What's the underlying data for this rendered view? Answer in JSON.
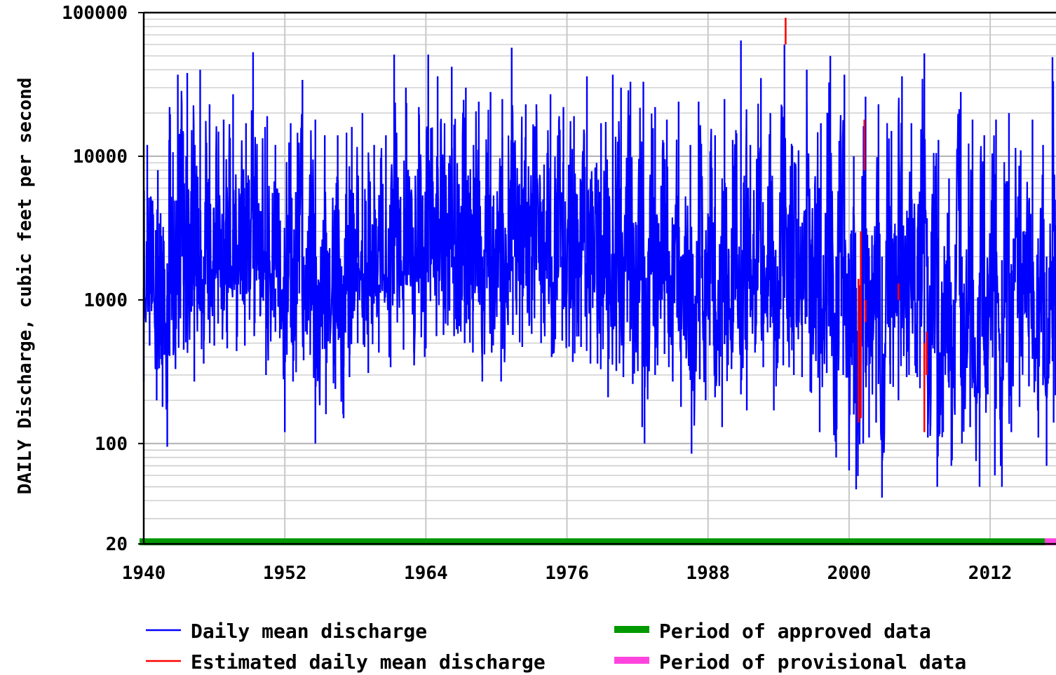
{
  "chart_data": {
    "type": "line",
    "title": "",
    "ylabel": "DAILY Discharge, cubic feet per second",
    "xlabel": "",
    "y_scale": "log",
    "ylim": [
      20,
      100000
    ],
    "xlim": [
      1940.0,
      2017.6
    ],
    "y_ticks": [
      "100000",
      "10000",
      "1000",
      "100",
      "20"
    ],
    "x_ticks": [
      "1940",
      "1952",
      "1964",
      "1976",
      "1988",
      "2000",
      "2012"
    ],
    "grid": true,
    "legend_position": "bottom",
    "legend": [
      {
        "label": "Daily mean discharge",
        "kind": "line",
        "color": "#0000ff"
      },
      {
        "label": "Estimated daily mean discharge",
        "kind": "line",
        "color": "#ff0000"
      },
      {
        "label": "Period of approved data",
        "kind": "bar",
        "color": "#009900"
      },
      {
        "label": "Period of provisional data",
        "kind": "bar",
        "color": "#ff44dd"
      }
    ],
    "series": [
      {
        "name": "Daily mean discharge",
        "color": "#0000ff",
        "annual_peaks": [
          [
            1940.3,
            12000
          ],
          [
            1941.2,
            8000
          ],
          [
            1942.2,
            22000
          ],
          [
            1942.9,
            37000
          ],
          [
            1943.7,
            38000
          ],
          [
            1944.8,
            40000
          ],
          [
            1945.6,
            23000
          ],
          [
            1946.8,
            18000
          ],
          [
            1947.6,
            27000
          ],
          [
            1948.7,
            17000
          ],
          [
            1949.3,
            53000
          ],
          [
            1950.5,
            19000
          ],
          [
            1951.2,
            12000
          ],
          [
            1952.5,
            17000
          ],
          [
            1953.5,
            34000
          ],
          [
            1954.6,
            18000
          ],
          [
            1955.4,
            14000
          ],
          [
            1956.5,
            14000
          ],
          [
            1957.7,
            16000
          ],
          [
            1958.6,
            20000
          ],
          [
            1959.6,
            12000
          ],
          [
            1960.6,
            14000
          ],
          [
            1961.3,
            51000
          ],
          [
            1962.3,
            30000
          ],
          [
            1963.4,
            22000
          ],
          [
            1964.2,
            51000
          ],
          [
            1965.0,
            36000
          ],
          [
            1966.2,
            42000
          ],
          [
            1967.4,
            30000
          ],
          [
            1968.5,
            24000
          ],
          [
            1969.5,
            28000
          ],
          [
            1970.5,
            25000
          ],
          [
            1971.3,
            57000
          ],
          [
            1972.5,
            23000
          ],
          [
            1973.4,
            23000
          ],
          [
            1974.6,
            27000
          ],
          [
            1975.7,
            22000
          ],
          [
            1976.6,
            19000
          ],
          [
            1977.7,
            36000
          ],
          [
            1978.9,
            17000
          ],
          [
            1979.9,
            37000
          ],
          [
            1980.6,
            30000
          ],
          [
            1981.4,
            33000
          ],
          [
            1982.5,
            33000
          ],
          [
            1983.5,
            22000
          ],
          [
            1984.5,
            18000
          ],
          [
            1985.5,
            24000
          ],
          [
            1986.5,
            12000
          ],
          [
            1987.2,
            24000
          ],
          [
            1988.6,
            14000
          ],
          [
            1989.4,
            25000
          ],
          [
            1990.1,
            13000
          ],
          [
            1990.8,
            64000
          ],
          [
            1991.6,
            12000
          ],
          [
            1992.5,
            35000
          ],
          [
            1993.3,
            20000
          ],
          [
            1994.5,
            60000
          ],
          [
            1995.7,
            11000
          ],
          [
            1996.4,
            40000
          ],
          [
            1997.6,
            17000
          ],
          [
            1998.4,
            50000
          ],
          [
            1999.6,
            37000
          ],
          [
            2000.4,
            10000
          ],
          [
            2001.4,
            26000
          ],
          [
            2002.5,
            23000
          ],
          [
            2003.6,
            15000
          ],
          [
            2004.5,
            36000
          ],
          [
            2005.3,
            17000
          ],
          [
            2006.4,
            52000
          ],
          [
            2007.6,
            13000
          ],
          [
            2008.5,
            7000
          ],
          [
            2009.5,
            28000
          ],
          [
            2010.5,
            18000
          ],
          [
            2011.5,
            14000
          ],
          [
            2012.5,
            18000
          ],
          [
            2013.6,
            20000
          ],
          [
            2014.6,
            11000
          ],
          [
            2015.6,
            18000
          ],
          [
            2016.5,
            12000
          ],
          [
            2017.3,
            49000
          ]
        ],
        "annual_minima": [
          [
            1940.0,
            270
          ],
          [
            1940.5,
            480
          ],
          [
            1941.1,
            200
          ],
          [
            1941.6,
            180
          ],
          [
            1942.0,
            95
          ],
          [
            1942.7,
            330
          ],
          [
            1943.4,
            450
          ],
          [
            1944.3,
            270
          ],
          [
            1945.1,
            360
          ],
          [
            1946.0,
            480
          ],
          [
            1947.1,
            460
          ],
          [
            1947.9,
            440
          ],
          [
            1948.6,
            480
          ],
          [
            1949.4,
            560
          ],
          [
            1950.4,
            300
          ],
          [
            1951.2,
            600
          ],
          [
            1951.9,
            280
          ],
          [
            1952.0,
            120
          ],
          [
            1952.7,
            270
          ],
          [
            1953.6,
            380
          ],
          [
            1954.6,
            100
          ],
          [
            1955.5,
            160
          ],
          [
            1956.3,
            240
          ],
          [
            1957.0,
            150
          ],
          [
            1957.5,
            290
          ],
          [
            1958.2,
            500
          ],
          [
            1959.1,
            310
          ],
          [
            1960.0,
            430
          ],
          [
            1961.0,
            340
          ],
          [
            1962.1,
            450
          ],
          [
            1963.0,
            350
          ],
          [
            1963.9,
            400
          ],
          [
            1964.9,
            560
          ],
          [
            1965.5,
            570
          ],
          [
            1966.4,
            560
          ],
          [
            1967.3,
            500
          ],
          [
            1968.0,
            430
          ],
          [
            1968.8,
            270
          ],
          [
            1969.6,
            430
          ],
          [
            1970.4,
            270
          ],
          [
            1971.4,
            570
          ],
          [
            1972.2,
            470
          ],
          [
            1973.0,
            580
          ],
          [
            1973.8,
            500
          ],
          [
            1974.7,
            400
          ],
          [
            1975.6,
            520
          ],
          [
            1976.5,
            370
          ],
          [
            1977.2,
            470
          ],
          [
            1978.0,
            360
          ],
          [
            1978.6,
            360
          ],
          [
            1979.5,
            210
          ],
          [
            1980.2,
            320
          ],
          [
            1980.8,
            290
          ],
          [
            1981.6,
            260
          ],
          [
            1982.4,
            130
          ],
          [
            1982.6,
            100
          ],
          [
            1983.5,
            300
          ],
          [
            1984.3,
            420
          ],
          [
            1985.0,
            270
          ],
          [
            1985.7,
            180
          ],
          [
            1986.6,
            85
          ],
          [
            1987.3,
            280
          ],
          [
            1987.8,
            200
          ],
          [
            1988.6,
            210
          ],
          [
            1989.2,
            130
          ],
          [
            1990.0,
            330
          ],
          [
            1990.8,
            220
          ],
          [
            1991.3,
            170
          ],
          [
            1992.0,
            430
          ],
          [
            1992.7,
            340
          ],
          [
            1993.6,
            170
          ],
          [
            1994.4,
            350
          ],
          [
            1995.3,
            300
          ],
          [
            1996.0,
            290
          ],
          [
            1996.7,
            230
          ],
          [
            1997.5,
            120
          ],
          [
            1998.1,
            310
          ],
          [
            1998.9,
            80
          ],
          [
            1999.5,
            300
          ],
          [
            2000.0,
            65
          ],
          [
            2000.6,
            48
          ],
          [
            2001.2,
            100
          ],
          [
            2001.7,
            110
          ],
          [
            2002.3,
            140
          ],
          [
            2002.8,
            42
          ],
          [
            2003.5,
            260
          ],
          [
            2004.2,
            200
          ],
          [
            2004.9,
            290
          ],
          [
            2005.8,
            290
          ],
          [
            2006.7,
            110
          ],
          [
            2007.5,
            50
          ],
          [
            2008.0,
            120
          ],
          [
            2008.7,
            70
          ],
          [
            2009.6,
            100
          ],
          [
            2010.3,
            130
          ],
          [
            2011.1,
            50
          ],
          [
            2011.8,
            220
          ],
          [
            2012.4,
            60
          ],
          [
            2013.0,
            50
          ],
          [
            2013.8,
            120
          ],
          [
            2014.5,
            180
          ],
          [
            2015.3,
            250
          ],
          [
            2016.1,
            110
          ],
          [
            2016.8,
            70
          ],
          [
            2017.4,
            140
          ]
        ]
      },
      {
        "name": "Estimated daily mean discharge",
        "color": "#ff0000",
        "segments": [
          {
            "x": 1994.6,
            "y_range": [
              60000,
              92000
            ]
          },
          {
            "x": 2000.8,
            "y_range": [
              140,
              1400
            ]
          },
          {
            "x": 2001.0,
            "y_range": [
              150,
              3000
            ]
          },
          {
            "x": 2001.3,
            "y_range": [
              8000,
              18000
            ]
          },
          {
            "x": 2001.4,
            "y_range": [
              700,
              1000
            ]
          },
          {
            "x": 2004.2,
            "y_range": [
              1000,
              1300
            ]
          },
          {
            "x": 2006.4,
            "y_range": [
              120,
              500
            ]
          },
          {
            "x": 2006.6,
            "y_range": [
              300,
              600
            ]
          }
        ]
      }
    ],
    "period_bars": [
      {
        "name": "Period of approved data",
        "color": "#009900",
        "x_range": [
          1940.0,
          2017.0
        ]
      },
      {
        "name": "Period of provisional data",
        "color": "#ff44dd",
        "x_range": [
          2017.0,
          2017.6
        ]
      }
    ]
  }
}
